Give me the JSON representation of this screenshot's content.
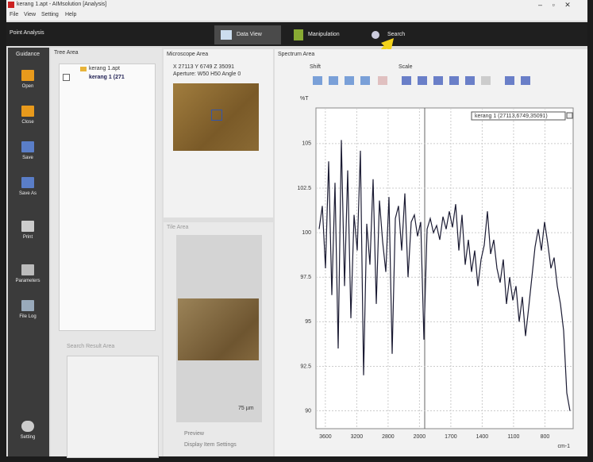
{
  "window": {
    "title": "kerang 1.apt - AIMsolution [Analysis]"
  },
  "menu": [
    "File",
    "View",
    "Setting",
    "Help"
  ],
  "toolbar": {
    "mode": "Point Analysis",
    "tabs": [
      "Data View",
      "Manipulation",
      "Search"
    ]
  },
  "sidebar": {
    "title": "Guidance",
    "items": [
      "Open",
      "Close",
      "Save",
      "Save As",
      "Print",
      "Parameters",
      "File Log"
    ],
    "setting": "Setting"
  },
  "tree_area": {
    "title": "Tree Area",
    "file": "kerang 1.apt",
    "item": "kerang 1 (271"
  },
  "search_result_area": {
    "title": "Search Result Area"
  },
  "microscope_area": {
    "title": "Microscope Area",
    "coords": "X 27113  Y 6749  Z 35091",
    "aperture": "Aperture: W50  H50  Angle 0"
  },
  "tile_area": {
    "title": "Tile Area",
    "scale": "75 µm",
    "preview": "Preview",
    "display_settings": "Display Item Settings"
  },
  "spectrum_area": {
    "title": "Spectrum Area",
    "shift": "Shift",
    "scale": "Scale"
  },
  "chart_data": {
    "type": "line",
    "y_label": "%T",
    "x_label": "cm-1",
    "x_tick_labels": [
      "3600",
      "3200",
      "2800",
      "2000",
      "1700",
      "1400",
      "1100",
      "800"
    ],
    "ylim": [
      89,
      107
    ],
    "yticks": [
      90,
      92.5,
      95,
      97.5,
      100,
      102.5,
      105
    ],
    "grid": true,
    "series": [
      {
        "name": "kerang 1 (27113,6749,35091)",
        "color": "#1b1b33",
        "values": [
          100.2,
          101.5,
          98.0,
          104.0,
          96.5,
          102.8,
          93.5,
          105.2,
          97.0,
          103.5,
          95.2,
          101.0,
          99.0,
          104.6,
          92.0,
          100.5,
          98.2,
          103.0,
          96.0,
          101.8,
          99.5,
          97.8,
          102.0,
          93.2,
          100.8,
          101.5,
          99.0,
          102.2,
          97.5,
          100.6,
          101.0,
          99.8,
          100.6,
          94.0,
          100.2,
          100.8,
          100.0,
          100.4,
          99.6,
          100.9,
          100.2,
          101.2,
          100.3,
          101.6,
          99.0,
          101.0,
          98.2,
          99.6,
          97.8,
          99.0,
          97.0,
          98.5,
          99.3,
          101.2,
          98.8,
          99.6,
          98.0,
          97.2,
          98.5,
          96.0,
          97.5,
          96.2,
          97.0,
          95.0,
          96.4,
          94.2,
          95.8,
          97.5,
          99.2,
          100.2,
          99.0,
          100.6,
          99.4,
          98.0,
          98.6,
          97.0,
          96.0,
          94.5,
          91.0,
          90.0
        ]
      }
    ]
  }
}
